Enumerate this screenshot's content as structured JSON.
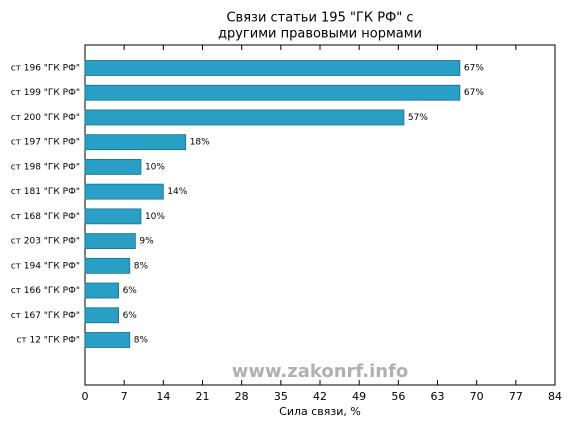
{
  "chart_data": {
    "type": "barh",
    "title": [
      "Связи статьи 195 \"ГК РФ\" с",
      "другими правовыми нормами"
    ],
    "xlabel": "Сила связи, %",
    "watermark": "www.zakonrf.info",
    "categories": [
      "ст 196 \"ГК РФ\"",
      "ст 199 \"ГК РФ\"",
      "ст 200 \"ГК РФ\"",
      "ст 197 \"ГК РФ\"",
      "ст 198 \"ГК РФ\"",
      "ст 181 \"ГК РФ\"",
      "ст 168 \"ГК РФ\"",
      "ст 203 \"ГК РФ\"",
      "ст 194 \"ГК РФ\"",
      "ст 166 \"ГК РФ\"",
      "ст 167 \"ГК РФ\"",
      "ст 12 \"ГК РФ\""
    ],
    "values": [
      67,
      67,
      57,
      18,
      10,
      14,
      10,
      9,
      8,
      6,
      6,
      8
    ],
    "value_labels": [
      "67%",
      "67%",
      "57%",
      "18%",
      "10%",
      "14%",
      "10%",
      "9%",
      "8%",
      "6%",
      "6%",
      "8%"
    ],
    "color": "#2a9fc6",
    "xlim": [
      0,
      84
    ],
    "xticks": [
      0,
      7,
      14,
      21,
      28,
      35,
      42,
      49,
      56,
      63,
      70,
      77,
      84
    ]
  }
}
